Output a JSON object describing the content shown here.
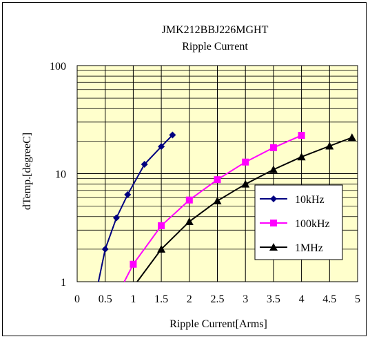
{
  "chart_data": {
    "type": "line",
    "title": "JMK212BBJ226MGHT",
    "subtitle": "Ripple Current",
    "xlabel": "Ripple Current[Arms]",
    "ylabel": "dTemp.[degreeC]",
    "xlim": [
      0,
      5
    ],
    "ylim": [
      1,
      100
    ],
    "yscale": "log",
    "x_ticks": [
      "0",
      "0.5",
      "1",
      "1.5",
      "2",
      "2.5",
      "3",
      "3.5",
      "4",
      "4.5",
      "5"
    ],
    "y_ticks": [
      "1",
      "10",
      "100"
    ],
    "grid": true,
    "legend_position": "lower-right",
    "plot_background": "#ffffcc",
    "series": [
      {
        "name": "10kHz",
        "color": "#000080",
        "marker": "diamond",
        "points": [
          [
            0.5,
            2.0
          ],
          [
            0.7,
            3.9
          ],
          [
            0.9,
            6.4
          ],
          [
            1.2,
            12.2
          ],
          [
            1.5,
            17.8
          ],
          [
            1.7,
            22.8
          ]
        ],
        "curve_start": [
          0.38,
          1.0
        ]
      },
      {
        "name": "100kHz",
        "color": "#ff00ff",
        "marker": "square",
        "points": [
          [
            1.0,
            1.45
          ],
          [
            1.5,
            3.3
          ],
          [
            2.0,
            5.7
          ],
          [
            2.5,
            8.8
          ],
          [
            3.0,
            12.8
          ],
          [
            3.5,
            17.4
          ],
          [
            4.0,
            22.6
          ]
        ],
        "curve_start": [
          0.84,
          1.0
        ]
      },
      {
        "name": "1MHz",
        "color": "#000000",
        "marker": "triangle",
        "points": [
          [
            1.5,
            2.0
          ],
          [
            2.0,
            3.6
          ],
          [
            2.5,
            5.6
          ],
          [
            3.0,
            8.0
          ],
          [
            3.5,
            10.9
          ],
          [
            4.0,
            14.3
          ],
          [
            4.5,
            18.0
          ],
          [
            4.9,
            21.6
          ]
        ],
        "curve_start": [
          1.07,
          1.0
        ]
      }
    ]
  }
}
